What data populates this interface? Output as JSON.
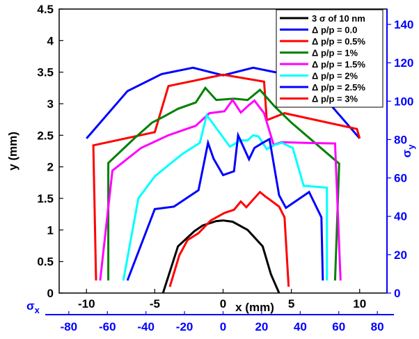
{
  "chart_data": {
    "type": "line",
    "xlabel": "x (mm)",
    "ylabel": "y (mm)",
    "xlim": [
      -12,
      12
    ],
    "ylim": [
      0,
      4.5
    ],
    "x_ticks": [
      -10,
      -5,
      0,
      5,
      10
    ],
    "y_ticks": [
      0,
      0.5,
      1,
      1.5,
      2,
      2.5,
      3,
      3.5,
      4,
      4.5
    ],
    "secondary_x": {
      "label": "σx",
      "lim": [
        -85,
        85
      ],
      "ticks": [
        -80,
        -60,
        -40,
        -20,
        0,
        20,
        40,
        60,
        80
      ]
    },
    "secondary_y": {
      "label": "σy",
      "lim": [
        0,
        148
      ],
      "ticks": [
        0,
        20,
        40,
        60,
        80,
        100,
        120,
        140
      ]
    },
    "grid": false,
    "legend_position": "top-right",
    "series": [
      {
        "name": "3 σ of 10 nm",
        "color": "#000000",
        "x": [
          -4.4,
          -3.3,
          -2.1,
          -1.5,
          -0.5,
          0,
          0.7,
          1.8,
          2.9,
          3.5,
          4.1
        ],
        "y": [
          0,
          0.74,
          0.98,
          1.07,
          1.14,
          1.15,
          1.13,
          1.0,
          0.74,
          0.3,
          0
        ]
      },
      {
        "name": "Δ p/p = 0.0",
        "color": "#0000ff",
        "x": [
          -10,
          -7,
          -4.5,
          -2.2,
          0,
          2.2,
          4.5,
          7,
          10
        ],
        "y": [
          2.45,
          3.2,
          3.47,
          3.57,
          3.45,
          3.57,
          3.47,
          3.2,
          2.45
        ]
      },
      {
        "name": "Δ p/p = 0.5%",
        "color": "#ff0000",
        "x": [
          -9.3,
          -9.5,
          -5.0,
          -4.0,
          0,
          3.0,
          3.2,
          4.5,
          9.8,
          10.0
        ],
        "y": [
          0.2,
          2.34,
          2.55,
          3.28,
          3.46,
          3.35,
          2.74,
          2.85,
          2.6,
          2.45
        ]
      },
      {
        "name": "Δ p/p = 1%",
        "color": "#008000",
        "x": [
          -8.4,
          -8.4,
          -6.5,
          -5.2,
          -4.3,
          -3.3,
          -2.0,
          -1.3,
          -0.5,
          0.8,
          1.8,
          2.7,
          3.8,
          5.0,
          8.5,
          8.2
        ],
        "y": [
          0.2,
          2.06,
          2.45,
          2.7,
          2.8,
          2.92,
          3.02,
          3.25,
          3.06,
          3.08,
          3.06,
          3.22,
          2.95,
          2.7,
          2.05,
          0.2
        ]
      },
      {
        "name": "Δ p/p = 1.5%",
        "color": "#ff00ff",
        "x": [
          -9.0,
          -8.1,
          -6.0,
          -4.0,
          -2.0,
          -1.0,
          0.1,
          0.7,
          1.3,
          1.9,
          2.3,
          3.0,
          3.7,
          4.3,
          6.0,
          8.2,
          8.6
        ],
        "y": [
          0.2,
          1.94,
          2.3,
          2.5,
          2.65,
          2.85,
          2.88,
          3.06,
          2.86,
          2.98,
          3.05,
          2.85,
          2.35,
          2.39,
          2.38,
          2.37,
          0.2
        ]
      },
      {
        "name": "Δ p/p = 2%",
        "color": "#00ffff",
        "x": [
          -7.3,
          -6.2,
          -5.0,
          -3.0,
          -1.7,
          -1.2,
          0.5,
          1.3,
          1.8,
          2.2,
          2.6,
          3.2,
          3.8,
          4.3,
          5.1,
          5.9,
          7.1,
          7.6,
          7.6
        ],
        "y": [
          0.2,
          1.5,
          1.85,
          2.2,
          2.38,
          2.82,
          2.32,
          2.42,
          2.42,
          2.5,
          2.48,
          2.28,
          2.35,
          2.38,
          2.3,
          1.7,
          1.68,
          1.67,
          0.2
        ]
      },
      {
        "name": "Δ p/p = 2.5%",
        "color": "#0000ff",
        "x": [
          -7.0,
          -5.0,
          -3.6,
          -1.8,
          -1.1,
          -0.7,
          0,
          0.8,
          1.1,
          1.9,
          2.3,
          2.9,
          3.4,
          4.1,
          4.6,
          6.3,
          7.2,
          7.3
        ],
        "y": [
          0.2,
          1.33,
          1.37,
          1.63,
          2.38,
          2.13,
          1.87,
          1.93,
          2.5,
          2.12,
          2.3,
          2.38,
          2.44,
          1.55,
          1.35,
          1.6,
          1.2,
          0.2
        ]
      },
      {
        "name": "Δ p/p = 3%",
        "color": "#ff0000",
        "x": [
          -3.9,
          -3.2,
          -2.6,
          -1.8,
          -0.9,
          0.1,
          0.8,
          1.3,
          1.7,
          2.2,
          2.7,
          3.1,
          3.6,
          4.1,
          4.5,
          4.8
        ],
        "y": [
          0.1,
          0.6,
          0.84,
          0.95,
          1.15,
          1.27,
          1.32,
          1.45,
          1.36,
          1.48,
          1.6,
          1.53,
          1.45,
          1.37,
          1.2,
          0.1
        ]
      }
    ]
  }
}
